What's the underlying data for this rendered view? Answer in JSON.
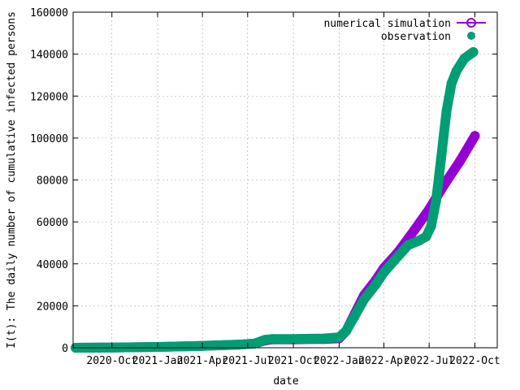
{
  "chart_data": {
    "type": "scatter",
    "title": "",
    "xlabel": "date",
    "ylabel": "I(t): The daily number of cumulative infected persons",
    "x_type": "date",
    "xlim": [
      "2020-07-15",
      "2022-11-15"
    ],
    "ylim": [
      0,
      160000
    ],
    "y_ticks": [
      0,
      20000,
      40000,
      60000,
      80000,
      100000,
      120000,
      140000,
      160000
    ],
    "y_tick_labels": [
      "0",
      "20000",
      "40000",
      "60000",
      "80000",
      "100000",
      "120000",
      "140000",
      "160000"
    ],
    "x_ticks": [
      "2020-10-01",
      "2021-01-01",
      "2021-04-01",
      "2021-07-01",
      "2021-10-01",
      "2022-01-01",
      "2022-04-01",
      "2022-07-01",
      "2022-10-01"
    ],
    "x_tick_labels": [
      "2020-Oct",
      "2021-Jan",
      "2021-Apr",
      "2021-Jul",
      "2021-Oct",
      "2022-Jan",
      "2022-Apr",
      "2022-Jul",
      "2022-Oct"
    ],
    "grid": true,
    "legend_position": "top-right",
    "series": [
      {
        "name": "numerical simulation",
        "color": "#9400d3",
        "marker": "open-circle",
        "points": [
          [
            "2020-07-20",
            0
          ],
          [
            "2020-10-01",
            100
          ],
          [
            "2021-01-01",
            400
          ],
          [
            "2021-04-01",
            900
          ],
          [
            "2021-06-15",
            1500
          ],
          [
            "2021-07-15",
            2000
          ],
          [
            "2021-08-05",
            3500
          ],
          [
            "2021-08-20",
            4000
          ],
          [
            "2021-10-01",
            4000
          ],
          [
            "2021-12-01",
            4200
          ],
          [
            "2022-01-01",
            4500
          ],
          [
            "2022-01-15",
            8000
          ],
          [
            "2022-02-01",
            16000
          ],
          [
            "2022-02-20",
            25000
          ],
          [
            "2022-03-15",
            32000
          ],
          [
            "2022-04-01",
            38000
          ],
          [
            "2022-05-01",
            46000
          ],
          [
            "2022-06-01",
            56000
          ],
          [
            "2022-07-01",
            66000
          ],
          [
            "2022-08-01",
            78000
          ],
          [
            "2022-09-01",
            89000
          ],
          [
            "2022-10-01",
            101000
          ]
        ]
      },
      {
        "name": "observation",
        "color": "#009e73",
        "marker": "filled-circle",
        "points": [
          [
            "2020-07-20",
            0
          ],
          [
            "2020-10-01",
            100
          ],
          [
            "2021-01-01",
            400
          ],
          [
            "2021-04-01",
            900
          ],
          [
            "2021-06-15",
            1500
          ],
          [
            "2021-07-15",
            2000
          ],
          [
            "2021-08-05",
            3800
          ],
          [
            "2021-08-20",
            4200
          ],
          [
            "2021-10-01",
            4200
          ],
          [
            "2021-12-01",
            4400
          ],
          [
            "2022-01-01",
            5000
          ],
          [
            "2022-01-15",
            8000
          ],
          [
            "2022-02-01",
            15000
          ],
          [
            "2022-02-20",
            23000
          ],
          [
            "2022-03-15",
            30000
          ],
          [
            "2022-04-01",
            36000
          ],
          [
            "2022-05-01",
            44000
          ],
          [
            "2022-05-20",
            49000
          ],
          [
            "2022-06-10",
            51000
          ],
          [
            "2022-06-25",
            53000
          ],
          [
            "2022-07-05",
            58000
          ],
          [
            "2022-07-15",
            70000
          ],
          [
            "2022-07-25",
            90000
          ],
          [
            "2022-08-05",
            113000
          ],
          [
            "2022-08-15",
            126000
          ],
          [
            "2022-08-25",
            132000
          ],
          [
            "2022-09-10",
            138000
          ],
          [
            "2022-09-28",
            141000
          ]
        ]
      }
    ]
  }
}
